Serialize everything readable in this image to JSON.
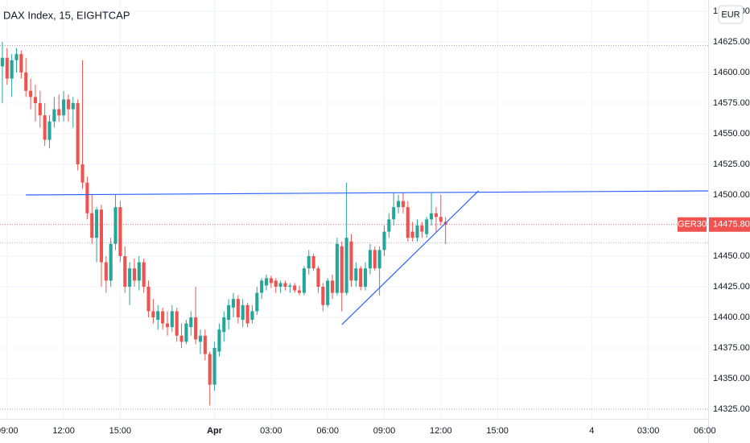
{
  "chart_data": {
    "type": "candlestick",
    "title": "DAX Index, 15, EIGHTCAP",
    "currency": "EUR",
    "up_color": "#26a69a",
    "down_color": "#ef5350",
    "grid": true,
    "x": [
      0,
      1,
      2,
      3,
      4,
      5,
      6,
      7,
      8,
      9,
      10,
      11,
      12,
      13,
      14,
      15,
      16,
      17,
      18,
      19,
      20,
      21,
      22,
      23,
      24,
      25,
      26,
      27,
      28,
      29,
      30,
      31,
      32,
      33,
      34,
      35,
      36,
      37,
      38,
      39,
      40,
      41,
      42,
      43,
      44,
      45,
      46,
      47,
      48,
      49,
      50,
      51,
      52,
      53,
      54,
      55,
      56,
      57,
      58,
      59,
      60,
      61,
      62,
      63,
      64,
      65,
      66,
      67,
      68,
      69,
      70,
      71,
      72,
      73,
      74,
      75,
      76,
      77,
      78,
      79,
      80,
      81,
      82,
      83,
      84,
      85,
      86,
      87,
      88,
      89,
      90,
      91,
      92,
      93,
      94
    ],
    "open": [
      14605,
      14612,
      14595,
      14610,
      14615,
      14600,
      14585,
      14580,
      14575,
      14565,
      14545,
      14560,
      14570,
      14565,
      14578,
      14570,
      14575,
      14525,
      14510,
      14485,
      14465,
      14488,
      14445,
      14430,
      14460,
      14490,
      14450,
      14425,
      14440,
      14430,
      14445,
      14425,
      14405,
      14398,
      14405,
      14395,
      14392,
      14405,
      14385,
      14380,
      14392,
      14400,
      14380,
      14385,
      14370,
      14345,
      14372,
      14388,
      14398,
      14408,
      14415,
      14398,
      14410,
      14398,
      14405,
      14420,
      14426,
      14432,
      14430,
      14425,
      14428,
      14425,
      14426,
      14422,
      14420,
      14440,
      14450,
      14440,
      14425,
      14410,
      14430,
      14420,
      14458,
      14420,
      14462,
      14430,
      14440,
      14425,
      14440,
      14455,
      14440,
      14455,
      14470,
      14480,
      14490,
      14495,
      14490,
      14470,
      14465,
      14475,
      14468,
      14480,
      14485,
      14482,
      14478
    ],
    "high": [
      14625,
      14620,
      14615,
      14620,
      14618,
      14612,
      14595,
      14590,
      14585,
      14575,
      14565,
      14580,
      14582,
      14585,
      14582,
      14580,
      14578,
      14610,
      14515,
      14500,
      14490,
      14492,
      14450,
      14465,
      14500,
      14495,
      14458,
      14445,
      14448,
      14450,
      14448,
      14430,
      14415,
      14410,
      14408,
      14405,
      14410,
      14408,
      14395,
      14398,
      14405,
      14425,
      14390,
      14390,
      14372,
      14380,
      14395,
      14405,
      14415,
      14420,
      14418,
      14415,
      14412,
      14410,
      14425,
      14432,
      14435,
      14434,
      14432,
      14430,
      14430,
      14428,
      14428,
      14426,
      14442,
      14455,
      14452,
      14442,
      14428,
      14432,
      14435,
      14465,
      14462,
      14510,
      14468,
      14445,
      14442,
      14445,
      14460,
      14458,
      14458,
      14475,
      14485,
      14502,
      14500,
      14502,
      14495,
      14478,
      14480,
      14478,
      14482,
      14502,
      14490,
      14500,
      14482
    ],
    "low": [
      14575,
      14590,
      14580,
      14600,
      14595,
      14580,
      14570,
      14560,
      14555,
      14540,
      14538,
      14555,
      14560,
      14560,
      14560,
      14555,
      14520,
      14505,
      14480,
      14460,
      14445,
      14425,
      14420,
      14425,
      14455,
      14445,
      14420,
      14410,
      14425,
      14422,
      14420,
      14400,
      14395,
      14390,
      14390,
      14385,
      14388,
      14380,
      14375,
      14378,
      14385,
      14378,
      14370,
      14365,
      14328,
      14340,
      14368,
      14380,
      14390,
      14400,
      14395,
      14392,
      14392,
      14395,
      14402,
      14415,
      14422,
      14424,
      14420,
      14420,
      14422,
      14420,
      14420,
      14418,
      14418,
      14435,
      14438,
      14420,
      14405,
      14408,
      14415,
      14418,
      14405,
      14418,
      14425,
      14425,
      14422,
      14422,
      14435,
      14438,
      14418,
      14450,
      14465,
      14475,
      14485,
      14485,
      14462,
      14462,
      14462,
      14465,
      14465,
      14475,
      14470,
      14475,
      14460
    ],
    "close": [
      14612,
      14595,
      14610,
      14615,
      14600,
      14585,
      14580,
      14575,
      14565,
      14545,
      14560,
      14570,
      14565,
      14578,
      14570,
      14575,
      14525,
      14510,
      14485,
      14465,
      14488,
      14445,
      14430,
      14460,
      14490,
      14450,
      14425,
      14440,
      14430,
      14445,
      14425,
      14405,
      14400,
      14405,
      14395,
      14392,
      14405,
      14385,
      14380,
      14395,
      14400,
      14382,
      14385,
      14370,
      14345,
      14375,
      14390,
      14400,
      14410,
      14415,
      14400,
      14410,
      14395,
      14405,
      14420,
      14430,
      14432,
      14428,
      14425,
      14428,
      14425,
      14426,
      14422,
      14420,
      14440,
      14450,
      14440,
      14425,
      14410,
      14430,
      14420,
      14460,
      14420,
      14465,
      14430,
      14440,
      14425,
      14440,
      14455,
      14440,
      14455,
      14470,
      14480,
      14490,
      14495,
      14490,
      14465,
      14465,
      14475,
      14470,
      14480,
      14485,
      14482,
      14478,
      14475.8
    ],
    "xlim": [
      -0.5,
      149.7
    ],
    "xticks": [
      {
        "value": 1,
        "label": "09:00"
      },
      {
        "value": 13,
        "label": "12:00"
      },
      {
        "value": 25,
        "label": "15:00"
      },
      {
        "value": 45,
        "label": "Apr"
      },
      {
        "value": 57,
        "label": "03:00"
      },
      {
        "value": 69,
        "label": "06:00"
      },
      {
        "value": 81,
        "label": "09:00"
      },
      {
        "value": 93,
        "label": "12:00"
      },
      {
        "value": 105,
        "label": "15:00"
      },
      {
        "value": 125,
        "label": "4"
      },
      {
        "value": 137,
        "label": "03:00"
      },
      {
        "value": 149,
        "label": "06:00"
      }
    ],
    "ylim": [
      14317.1,
      14659.2
    ],
    "yticks": [
      {
        "value": 14325,
        "label": "14325.00"
      },
      {
        "value": 14350,
        "label": "14350.00"
      },
      {
        "value": 14375,
        "label": "14375.00"
      },
      {
        "value": 14400,
        "label": "14400.00"
      },
      {
        "value": 14425,
        "label": "14425.00"
      },
      {
        "value": 14450,
        "label": "14450.00"
      },
      {
        "value": 14475,
        "label": "14475.00"
      },
      {
        "value": 14500,
        "label": "14500.00"
      },
      {
        "value": 14525,
        "label": "14525.00"
      },
      {
        "value": 14550,
        "label": "14550.00"
      },
      {
        "value": 14575,
        "label": "14575.00"
      },
      {
        "value": 14600,
        "label": "14600.00"
      },
      {
        "value": 14625,
        "label": "14625.00"
      },
      {
        "value": 14650,
        "label": "14650.00"
      }
    ],
    "price_lines": [
      14622,
      14461,
      14325
    ],
    "last_price": {
      "symbol": "GER30",
      "value": 14475.8,
      "label": "14475.80"
    },
    "trendlines": [
      {
        "color": "#2962ff",
        "x": [
          5,
          149.7
        ],
        "y": [
          14500,
          14503.3
        ]
      },
      {
        "color": "#2962ff",
        "x": [
          72,
          101
        ],
        "y": [
          14394,
          14503.3
        ]
      }
    ]
  }
}
